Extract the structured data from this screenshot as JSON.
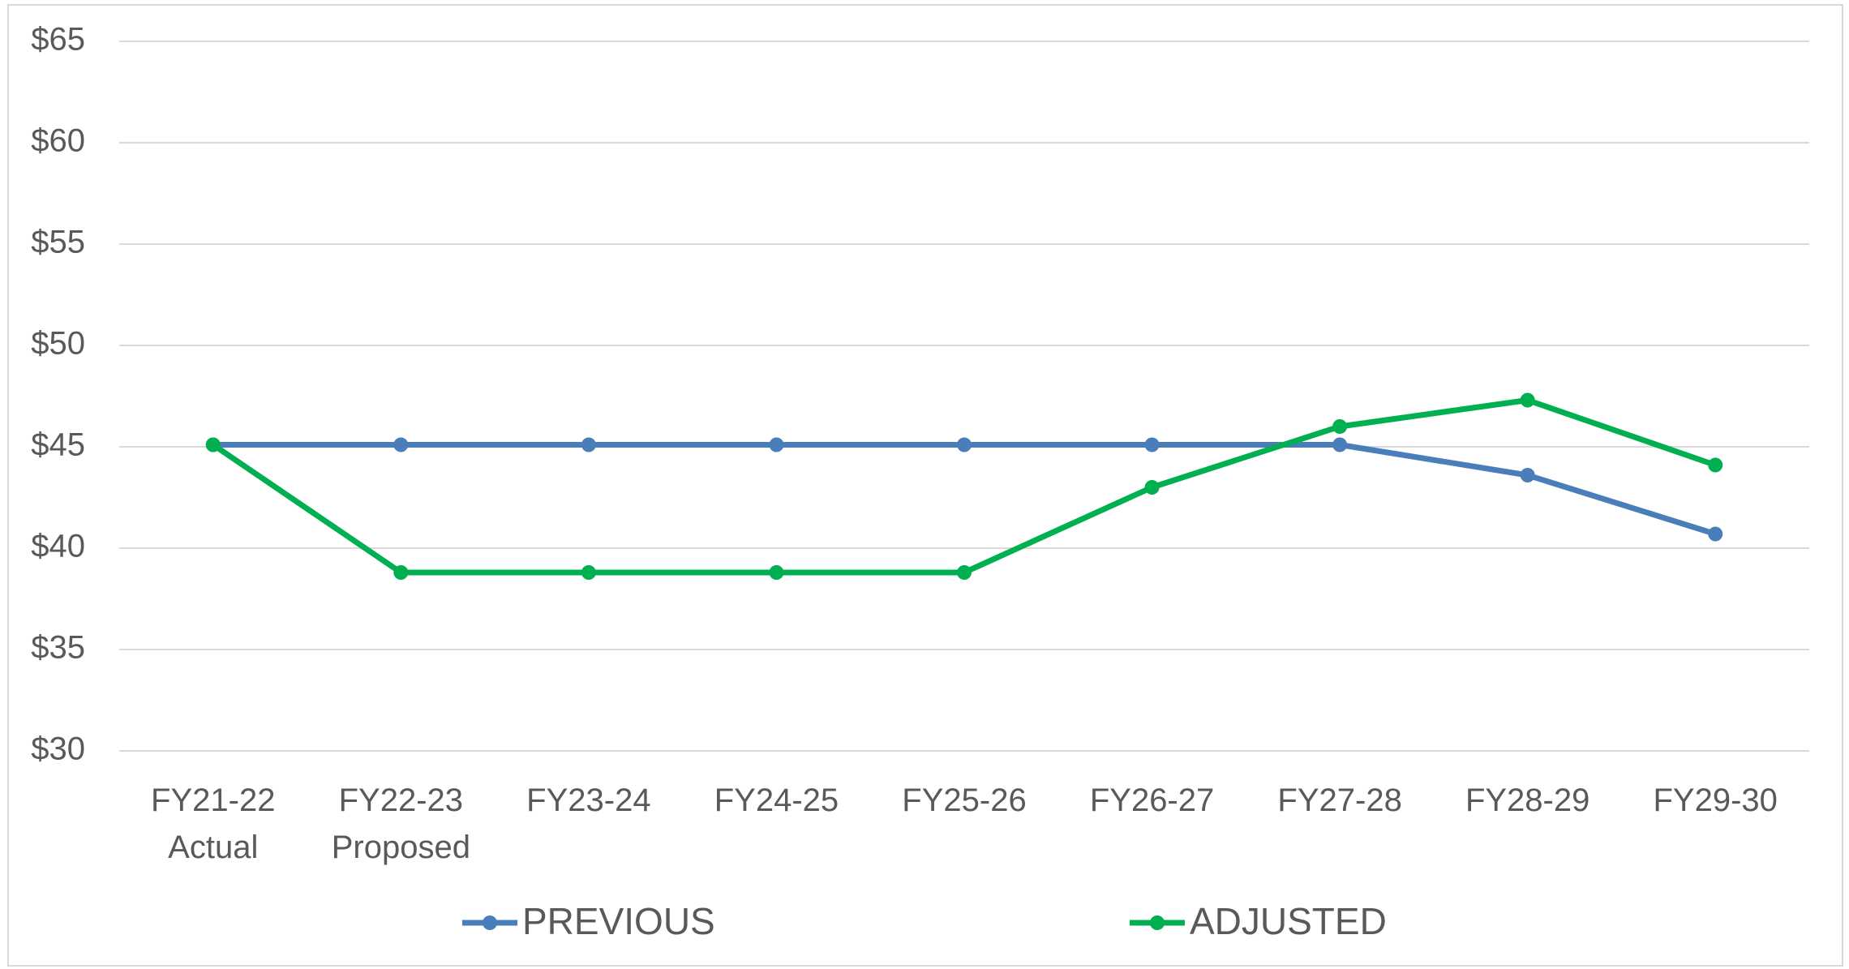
{
  "chart_data": {
    "type": "line",
    "categories": [
      "FY21-22\nActual",
      "FY22-23\nProposed",
      "FY23-24",
      "FY24-25",
      "FY25-26",
      "FY26-27",
      "FY27-28",
      "FY28-29",
      "FY29-30"
    ],
    "series": [
      {
        "name": "PREVIOUS",
        "color": "#4a7ebb",
        "values": [
          45.1,
          45.1,
          45.1,
          45.1,
          45.1,
          45.1,
          45.1,
          43.6,
          40.7
        ]
      },
      {
        "name": "ADJUSTED",
        "color": "#00b050",
        "values": [
          45.1,
          38.8,
          38.8,
          38.8,
          38.8,
          43.0,
          46.0,
          47.3,
          44.1
        ]
      }
    ],
    "ylim": [
      30,
      65
    ],
    "yticks": [
      {
        "value": 30,
        "label": "$30"
      },
      {
        "value": 35,
        "label": "$35"
      },
      {
        "value": 40,
        "label": "$40"
      },
      {
        "value": 45,
        "label": "$45"
      },
      {
        "value": 50,
        "label": "$50"
      },
      {
        "value": 55,
        "label": "$55"
      },
      {
        "value": 60,
        "label": "$60"
      },
      {
        "value": 65,
        "label": "$65"
      }
    ],
    "grid": true,
    "legend": "bottom"
  }
}
